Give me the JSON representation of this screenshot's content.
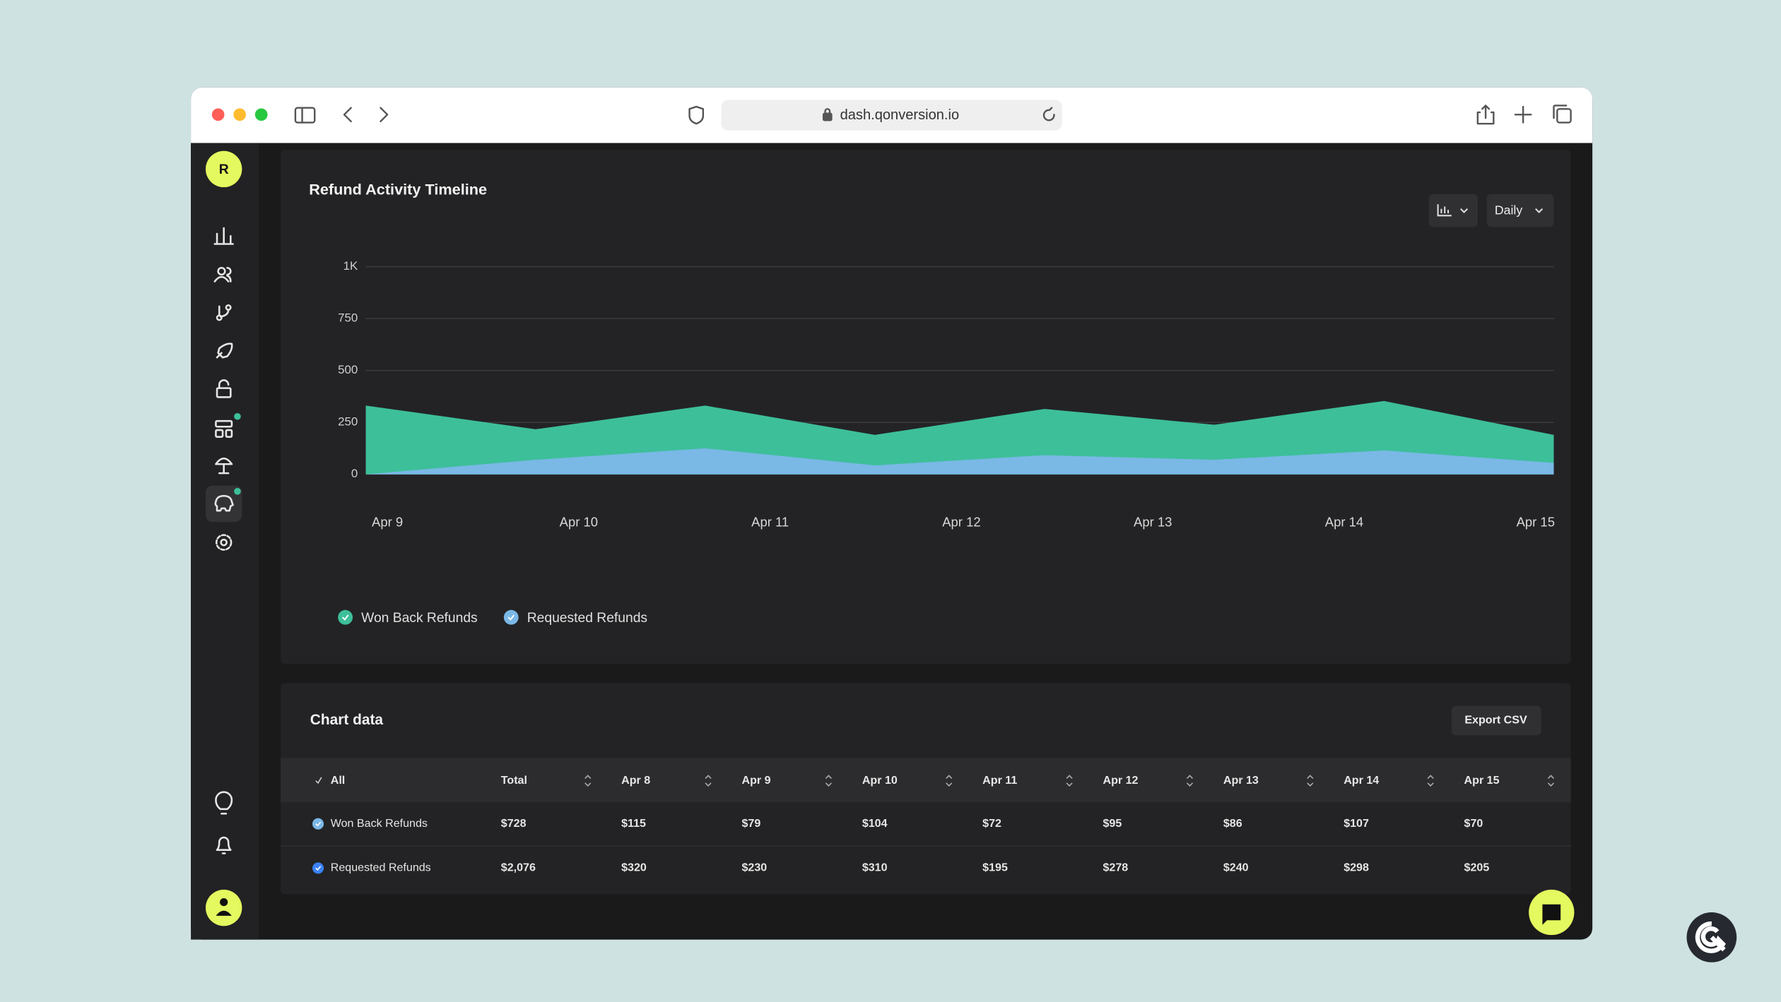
{
  "browser": {
    "url": "dash.qonversion.io"
  },
  "sidebar": {
    "avatar": "R"
  },
  "controls": {
    "interval": "Daily"
  },
  "chart_data": {
    "type": "area",
    "title": "Refund Activity Timeline",
    "categories": [
      null,
      null,
      null,
      null,
      null,
      null,
      null,
      null
    ],
    "x_labels": [
      "Apr 9",
      "Apr 10",
      "Apr 11",
      "Apr 12",
      "Apr 13",
      "Apr 14",
      "Apr 15"
    ],
    "series": [
      {
        "name": "Won Back Refunds",
        "color": "#3dbf9a",
        "values": [
          331,
          217,
          331,
          190,
          315,
          239,
          353,
          190
        ]
      },
      {
        "name": "Requested Refunds",
        "color": "#7ab8e6",
        "values": [
          0,
          70,
          125,
          43,
          92,
          70,
          115,
          55
        ]
      }
    ],
    "ylim": [
      0,
      1000
    ],
    "yticks": [
      0,
      250,
      500,
      750,
      {
        "value": 1000,
        "label": "1K"
      }
    ],
    "grid": true
  },
  "table": {
    "title": "Chart data",
    "export": "Export CSV",
    "header": [
      "All",
      "Total",
      "Apr 8",
      "Apr 9",
      "Apr 10",
      "Apr 11",
      "Apr 12",
      "Apr 13",
      "Apr 14",
      "Apr 15"
    ],
    "rows": [
      [
        "Won Back Refunds",
        "$728",
        "$115",
        "$79",
        "$104",
        "$72",
        "$95",
        "$86",
        "$107",
        "$70"
      ],
      [
        "Requested Refunds",
        "$2,076",
        "$320",
        "$230",
        "$310",
        "$195",
        "$278",
        "$240",
        "$298",
        "$205"
      ]
    ]
  }
}
